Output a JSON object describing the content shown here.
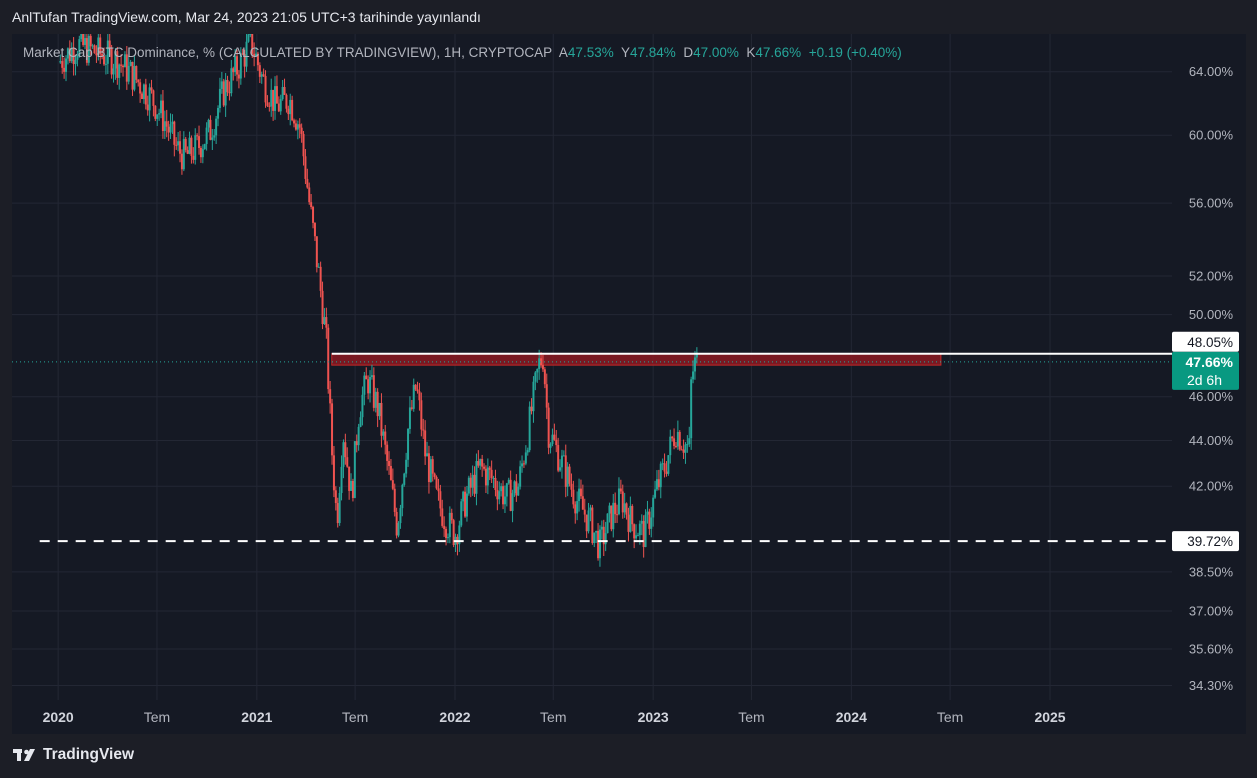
{
  "header": {
    "publish_text": "AnlTufan TradingView.com, Mar 24, 2023 21:05 UTC+3 tarihinde yayınlandı"
  },
  "legend": {
    "symbol": "Market Cap BTC Dominance, % (CALCULATED BY TRADINGVIEW), 1H, CRYPTOCAP",
    "open_label": "A",
    "open_value": "47.53%",
    "high_label": "Y",
    "high_value": "47.84%",
    "low_label": "D",
    "low_value": "47.00%",
    "close_label": "K",
    "close_value": "47.66%",
    "change": "+0.19 (+0.40%)"
  },
  "footer": {
    "brand": "TradingView"
  },
  "colors": {
    "up": "#26a69a",
    "down": "#ef5350",
    "background": "#151924",
    "resistance_zone": "#8b1a22",
    "price_badge": "#089981"
  },
  "price_badges": {
    "resistance": "48.05%",
    "current": "47.66%",
    "countdown": "2d 6h",
    "support": "39.72%"
  },
  "chart_data": {
    "type": "candlestick",
    "title": "Market Cap BTC Dominance, % (CALCULATED BY TRADINGVIEW), 1H, CRYPTOCAP",
    "y_scale": "log",
    "ylim": [
      33.8,
      66.5
    ],
    "y_ticks": [
      {
        "value": 64.0,
        "label": "64.00%"
      },
      {
        "value": 60.0,
        "label": "60.00%"
      },
      {
        "value": 56.0,
        "label": "56.00%"
      },
      {
        "value": 52.0,
        "label": "52.00%"
      },
      {
        "value": 50.0,
        "label": "50.00%"
      },
      {
        "value": 46.0,
        "label": "46.00%"
      },
      {
        "value": 44.0,
        "label": "44.00%"
      },
      {
        "value": 42.0,
        "label": "42.00%"
      },
      {
        "value": 38.5,
        "label": "38.50%"
      },
      {
        "value": 37.0,
        "label": "37.00%"
      },
      {
        "value": 35.6,
        "label": "35.60%"
      },
      {
        "value": 34.3,
        "label": "34.30%"
      }
    ],
    "x_ticks": [
      {
        "date": "2020-01-01",
        "label": "2020",
        "bold": true
      },
      {
        "date": "2020-07-01",
        "label": "Tem",
        "bold": false
      },
      {
        "date": "2021-01-01",
        "label": "2021",
        "bold": true
      },
      {
        "date": "2021-07-01",
        "label": "Tem",
        "bold": false
      },
      {
        "date": "2022-01-01",
        "label": "2022",
        "bold": true
      },
      {
        "date": "2022-07-01",
        "label": "Tem",
        "bold": false
      },
      {
        "date": "2023-01-01",
        "label": "2023",
        "bold": true
      },
      {
        "date": "2023-07-01",
        "label": "Tem",
        "bold": false
      },
      {
        "date": "2024-01-01",
        "label": "2024",
        "bold": true
      },
      {
        "date": "2024-07-01",
        "label": "Tem",
        "bold": false
      },
      {
        "date": "2025-01-01",
        "label": "2025",
        "bold": true
      }
    ],
    "x_range": [
      "2019-10-08",
      "2025-08-10"
    ],
    "grid": true,
    "resistance_level": 48.05,
    "resistance_zone": {
      "from": "2021-05-19",
      "to": "2024-06-14",
      "low": 47.5,
      "high": 48.05
    },
    "support_level": 39.72,
    "support_from": "2019-11-28",
    "last_price": 47.66,
    "path": [
      {
        "date": "2020-01-05",
        "value": 64.6
      },
      {
        "date": "2020-02-10",
        "value": 65.8
      },
      {
        "date": "2020-03-20",
        "value": 65.2
      },
      {
        "date": "2020-04-20",
        "value": 64.8
      },
      {
        "date": "2020-05-20",
        "value": 63.8
      },
      {
        "date": "2020-06-25",
        "value": 62.3
      },
      {
        "date": "2020-07-20",
        "value": 60.8
      },
      {
        "date": "2020-08-10",
        "value": 59.2
      },
      {
        "date": "2020-08-25",
        "value": 58.7
      },
      {
        "date": "2020-09-15",
        "value": 59.2
      },
      {
        "date": "2020-10-10",
        "value": 60.2
      },
      {
        "date": "2020-11-05",
        "value": 62.8
      },
      {
        "date": "2020-12-01",
        "value": 64.3
      },
      {
        "date": "2020-12-25",
        "value": 66.0
      },
      {
        "date": "2021-01-15",
        "value": 63.5
      },
      {
        "date": "2021-02-10",
        "value": 61.8
      },
      {
        "date": "2021-03-05",
        "value": 62.3
      },
      {
        "date": "2021-03-25",
        "value": 60.5
      },
      {
        "date": "2021-04-12",
        "value": 55.8
      },
      {
        "date": "2021-04-28",
        "value": 52.2
      },
      {
        "date": "2021-05-12",
        "value": 48.8
      },
      {
        "date": "2021-05-22",
        "value": 43.8
      },
      {
        "date": "2021-06-01",
        "value": 40.5
      },
      {
        "date": "2021-06-12",
        "value": 44.5
      },
      {
        "date": "2021-06-28",
        "value": 41.5
      },
      {
        "date": "2021-07-12",
        "value": 45.5
      },
      {
        "date": "2021-07-28",
        "value": 46.8
      },
      {
        "date": "2021-08-15",
        "value": 45.5
      },
      {
        "date": "2021-09-05",
        "value": 42.5
      },
      {
        "date": "2021-09-20",
        "value": 40.3
      },
      {
        "date": "2021-10-10",
        "value": 44.5
      },
      {
        "date": "2021-10-25",
        "value": 46.5
      },
      {
        "date": "2021-11-10",
        "value": 43.5
      },
      {
        "date": "2021-12-01",
        "value": 41.5
      },
      {
        "date": "2021-12-20",
        "value": 40.5
      },
      {
        "date": "2022-01-05",
        "value": 40.0
      },
      {
        "date": "2022-01-25",
        "value": 41.5
      },
      {
        "date": "2022-02-20",
        "value": 42.8
      },
      {
        "date": "2022-03-15",
        "value": 42.3
      },
      {
        "date": "2022-04-10",
        "value": 41.5
      },
      {
        "date": "2022-05-01",
        "value": 42.0
      },
      {
        "date": "2022-05-20",
        "value": 44.5
      },
      {
        "date": "2022-06-08",
        "value": 47.5
      },
      {
        "date": "2022-06-16",
        "value": 48.0
      },
      {
        "date": "2022-06-25",
        "value": 44.5
      },
      {
        "date": "2022-07-20",
        "value": 43.0
      },
      {
        "date": "2022-08-15",
        "value": 41.5
      },
      {
        "date": "2022-09-10",
        "value": 40.5
      },
      {
        "date": "2022-09-28",
        "value": 39.5
      },
      {
        "date": "2022-10-20",
        "value": 40.8
      },
      {
        "date": "2022-11-08",
        "value": 41.5
      },
      {
        "date": "2022-11-25",
        "value": 40.5
      },
      {
        "date": "2022-12-20",
        "value": 40.0
      },
      {
        "date": "2023-01-10",
        "value": 41.8
      },
      {
        "date": "2023-01-28",
        "value": 43.0
      },
      {
        "date": "2023-02-15",
        "value": 44.5
      },
      {
        "date": "2023-03-05",
        "value": 43.8
      },
      {
        "date": "2023-03-12",
        "value": 43.6
      },
      {
        "date": "2023-03-16",
        "value": 47.0
      },
      {
        "date": "2023-03-24",
        "value": 47.66
      }
    ]
  }
}
